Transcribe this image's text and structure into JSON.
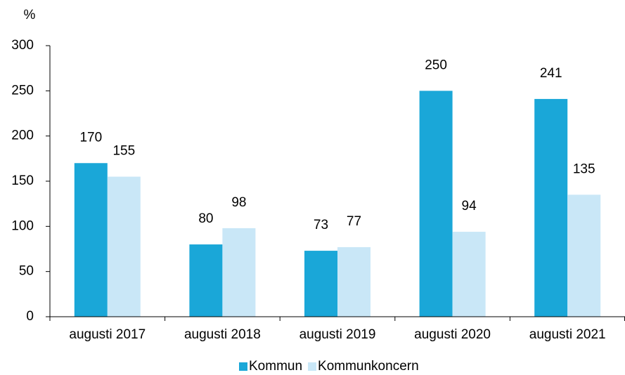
{
  "chart_data": {
    "type": "bar",
    "y_label": "%",
    "categories": [
      "augusti 2017",
      "augusti 2018",
      "augusti 2019",
      "augusti 2020",
      "augusti 2021"
    ],
    "series": [
      {
        "name": "Kommun",
        "color": "#1aa7d8",
        "values": [
          170,
          80,
          73,
          250,
          241
        ]
      },
      {
        "name": "Kommunkoncern",
        "color": "#c9e7f7",
        "values": [
          155,
          98,
          77,
          94,
          135
        ]
      }
    ],
    "ylim": [
      0,
      300
    ],
    "yticks": [
      0,
      50,
      100,
      150,
      200,
      250,
      300
    ],
    "legend": "bottom"
  }
}
